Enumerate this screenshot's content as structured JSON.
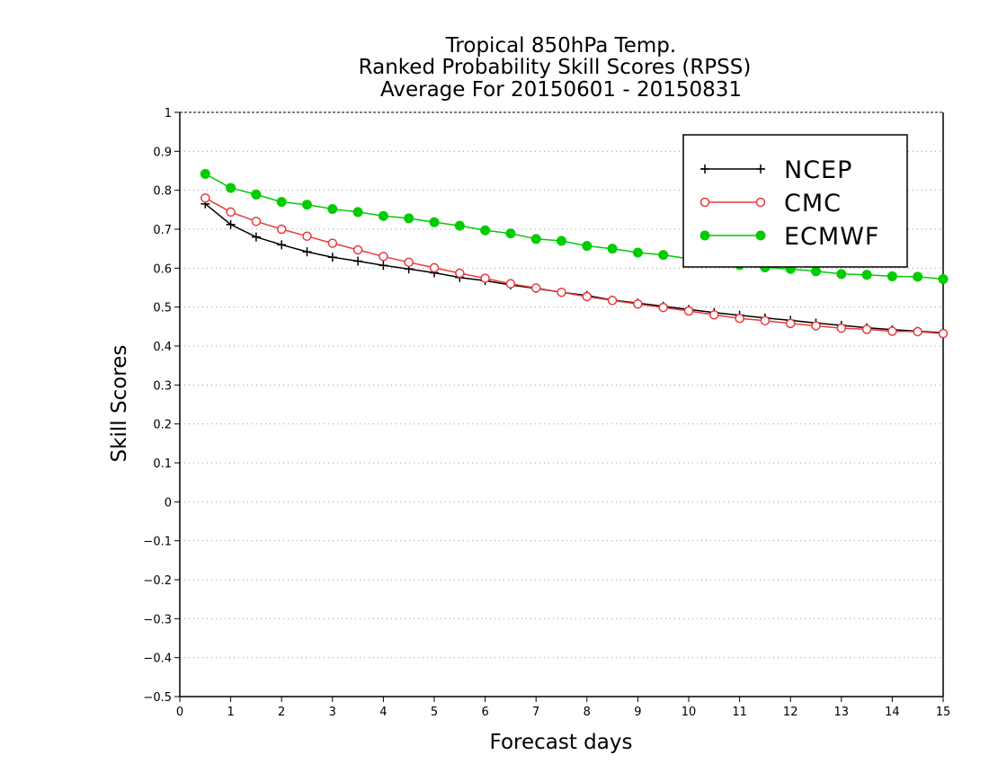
{
  "chart_data": {
    "type": "line",
    "title_lines": [
      "Tropical 850hPa Temp.",
      "Ranked Probability Skill Scores (RPSS)",
      "Average For 20150601 - 20150831"
    ],
    "xlabel": "Forecast days",
    "ylabel": "Skill Scores",
    "xlim": [
      0,
      15
    ],
    "ylim": [
      -0.5,
      1
    ],
    "xticks": [
      "0",
      "1",
      "2",
      "3",
      "4",
      "5",
      "6",
      "7",
      "8",
      "9",
      "10",
      "11",
      "12",
      "13",
      "14",
      "15"
    ],
    "yticks": [
      "1",
      "0.9",
      "0.8",
      "0.7",
      "0.6",
      "0.5",
      "0.4",
      "0.3",
      "0.2",
      "0.1",
      "0",
      "−0.1",
      "−0.2",
      "−0.3",
      "−0.4",
      "−0.5"
    ],
    "grid": "horizontal dotted",
    "legend_position": "top-right",
    "x": [
      0.5,
      1,
      1.5,
      2,
      2.5,
      3,
      3.5,
      4,
      4.5,
      5,
      5.5,
      6,
      6.5,
      7,
      7.5,
      8,
      8.5,
      9,
      9.5,
      10,
      10.5,
      11,
      11.5,
      12,
      12.5,
      13,
      13.5,
      14,
      14.5,
      15
    ],
    "series": [
      {
        "name": "NCEP",
        "color": "#000000",
        "marker": "plus",
        "values": [
          0.765,
          0.712,
          0.68,
          0.66,
          0.642,
          0.628,
          0.618,
          0.607,
          0.598,
          0.588,
          0.576,
          0.568,
          0.557,
          0.548,
          0.538,
          0.53,
          0.518,
          0.51,
          0.502,
          0.494,
          0.486,
          0.479,
          0.472,
          0.466,
          0.459,
          0.453,
          0.447,
          0.442,
          0.438,
          0.434
        ]
      },
      {
        "name": "CMC",
        "color": "#e8393c",
        "marker": "open-circle",
        "values": [
          0.78,
          0.744,
          0.72,
          0.7,
          0.682,
          0.664,
          0.647,
          0.63,
          0.615,
          0.601,
          0.587,
          0.574,
          0.56,
          0.549,
          0.538,
          0.527,
          0.517,
          0.508,
          0.499,
          0.49,
          0.48,
          0.471,
          0.465,
          0.458,
          0.452,
          0.446,
          0.443,
          0.438,
          0.437,
          0.432
        ]
      },
      {
        "name": "ECMWF",
        "color": "#00cc00",
        "marker": "filled-circle",
        "values": [
          0.842,
          0.806,
          0.789,
          0.77,
          0.763,
          0.752,
          0.744,
          0.734,
          0.728,
          0.718,
          0.709,
          0.697,
          0.689,
          0.675,
          0.67,
          0.657,
          0.65,
          0.64,
          0.634,
          0.624,
          0.617,
          0.608,
          0.602,
          0.598,
          0.592,
          0.585,
          0.583,
          0.579,
          0.578,
          0.572
        ]
      }
    ]
  }
}
